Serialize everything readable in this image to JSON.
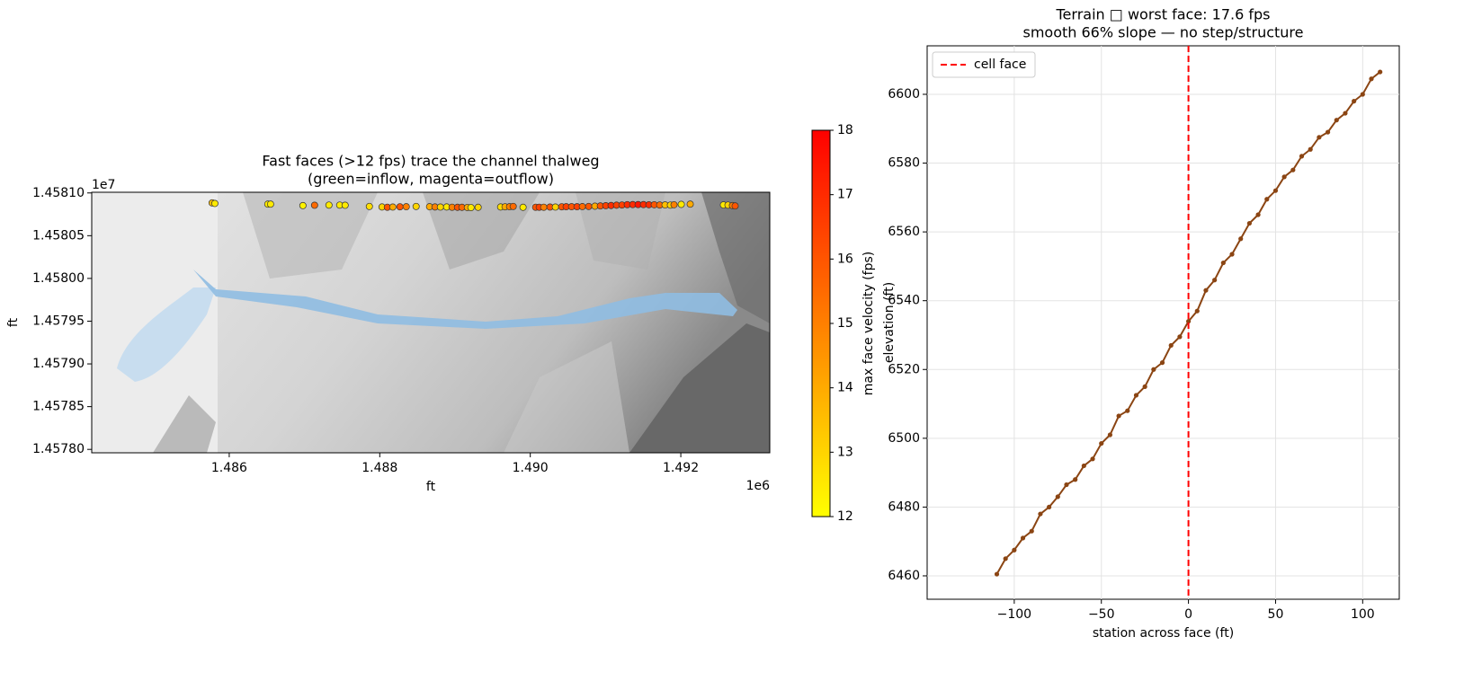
{
  "chart_data": [
    {
      "type": "scatter",
      "title": [
        "Fast faces (>12 fps) trace the channel thalweg",
        "(green=inflow, magenta=outflow)"
      ],
      "x_label": "ft",
      "y_label": "ft",
      "x_offset_label": "1e6",
      "y_offset_label": "1e7",
      "xlim": [
        1484173,
        1493182
      ],
      "ylim": [
        14577960,
        14581008
      ],
      "xticks": [
        {
          "value": 1486000,
          "label": "1.486"
        },
        {
          "value": 1488000,
          "label": "1.488"
        },
        {
          "value": 1490000,
          "label": "1.490"
        },
        {
          "value": 1492000,
          "label": "1.492"
        }
      ],
      "yticks": [
        {
          "value": 14578000,
          "label": "1.45780"
        },
        {
          "value": 14578500,
          "label": "1.45785"
        },
        {
          "value": 14579000,
          "label": "1.45790"
        },
        {
          "value": 14579500,
          "label": "1.45795"
        },
        {
          "value": 14580000,
          "label": "1.45800"
        },
        {
          "value": 14580500,
          "label": "1.45805"
        },
        {
          "value": 14581000,
          "label": "1.45810"
        }
      ],
      "x": [
        1485773,
        1485809,
        1486513,
        1486549,
        1486979,
        1487134,
        1487325,
        1487468,
        1487540,
        1487862,
        1488030,
        1488101,
        1488173,
        1488268,
        1488352,
        1488483,
        1488662,
        1488734,
        1488806,
        1488889,
        1488961,
        1489033,
        1489092,
        1489164,
        1489212,
        1489307,
        1489606,
        1489665,
        1489725,
        1489773,
        1489904,
        1490071,
        1490119,
        1490179,
        1490262,
        1490334,
        1490418,
        1490477,
        1490549,
        1490621,
        1490692,
        1490776,
        1490859,
        1490931,
        1491003,
        1491074,
        1491146,
        1491218,
        1491289,
        1491361,
        1491433,
        1491504,
        1491576,
        1491647,
        1491719,
        1491791,
        1491862,
        1491910,
        1492006,
        1492125,
        1492567,
        1492627,
        1492686,
        1492722
      ],
      "values": [
        14580884,
        14580877,
        14580869,
        14580869,
        14580852,
        14580856,
        14580858,
        14580858,
        14580856,
        14580842,
        14580836,
        14580833,
        14580835,
        14580838,
        14580839,
        14580842,
        14580839,
        14580836,
        14580835,
        14580836,
        14580833,
        14580832,
        14580832,
        14580830,
        14580829,
        14580832,
        14580836,
        14580838,
        14580839,
        14580842,
        14580832,
        14580833,
        14580833,
        14580833,
        14580835,
        14580835,
        14580838,
        14580839,
        14580839,
        14580839,
        14580840,
        14580842,
        14580845,
        14580848,
        14580851,
        14580853,
        14580857,
        14580859,
        14580863,
        14580864,
        14580864,
        14580864,
        14580862,
        14580862,
        14580859,
        14580860,
        14580858,
        14580862,
        14580866,
        14580869,
        14580860,
        14580858,
        14580852,
        14580848
      ],
      "color_values": [
        13.5,
        12.5,
        12.5,
        12.5,
        12.3,
        15.5,
        12.5,
        12.5,
        12.5,
        12.8,
        13,
        16,
        14,
        16,
        15,
        13,
        14,
        15,
        13,
        12.5,
        15,
        16,
        15.5,
        14,
        12.5,
        13,
        12.8,
        14,
        15,
        15.5,
        12.5,
        16,
        16.5,
        15,
        16,
        13,
        16,
        16.5,
        16,
        16.5,
        15.5,
        16,
        14,
        16,
        16.5,
        17,
        16.5,
        16.5,
        17,
        17,
        17.5,
        17,
        17,
        16,
        15.5,
        13.5,
        13,
        15,
        12.5,
        14,
        12.5,
        13,
        15,
        16
      ],
      "colorbar": {
        "label": "max face velocity (fps)",
        "lim": [
          12,
          18
        ],
        "ticks": [
          12,
          13,
          14,
          15,
          16,
          17,
          18
        ],
        "colors": [
          "#ffff00",
          "#ff0000"
        ]
      }
    },
    {
      "type": "line",
      "title": [
        "Terrain □ worst face: 17.6 fps",
        "smooth 66% slope — no step/structure"
      ],
      "x_label": "station across face (ft)",
      "y_label": "elevation (ft)",
      "xlim": [
        -150,
        121
      ],
      "ylim": [
        6453.2,
        6614.1
      ],
      "xticks": [
        {
          "value": -100,
          "label": "−100"
        },
        {
          "value": -50,
          "label": "−50"
        },
        0,
        50,
        100
      ],
      "yticks": [
        6460,
        6480,
        6500,
        6520,
        6540,
        6560,
        6580,
        6600
      ],
      "grid": true,
      "legend": "upper left",
      "x": [
        -110,
        -105,
        -100,
        -95,
        -90,
        -85,
        -80,
        -75,
        -70,
        -65,
        -60,
        -55,
        -50,
        -45,
        -40,
        -35,
        -30,
        -25,
        -20,
        -15,
        -10,
        -5,
        0,
        5,
        10,
        15,
        20,
        25,
        30,
        35,
        40,
        45,
        50,
        55,
        60,
        65,
        70,
        75,
        80,
        85,
        90,
        95,
        100,
        105,
        110
      ],
      "series": [
        {
          "color": "#8b4513",
          "values": [
            6460.5,
            6465,
            6467.5,
            6471,
            6473,
            6478,
            6480,
            6483,
            6486.5,
            6488,
            6492,
            6494,
            6498.5,
            6501,
            6506.5,
            6508,
            6512.5,
            6515,
            6520,
            6522,
            6527,
            6529.5,
            6534,
            6537,
            6543,
            6546,
            6551,
            6553.5,
            6558,
            6562.5,
            6565,
            6569.5,
            6572,
            6576,
            6578,
            6582,
            6584,
            6587.5,
            6589,
            6592.5,
            6594.5,
            6598,
            6600,
            6604.5,
            6606.5
          ]
        }
      ],
      "vline": {
        "x": 0,
        "name": "cell face",
        "color": "#ff0000"
      }
    }
  ]
}
